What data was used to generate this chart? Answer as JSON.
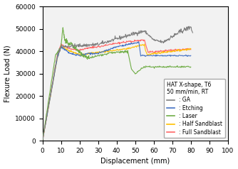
{
  "title": "",
  "xlabel": "Displacement (mm)",
  "ylabel": "Flexure Load (N)",
  "xlim": [
    0,
    100
  ],
  "ylim": [
    0,
    60000
  ],
  "xticks": [
    0,
    10,
    20,
    30,
    40,
    50,
    60,
    70,
    80,
    90,
    100
  ],
  "yticks": [
    0,
    10000,
    20000,
    30000,
    40000,
    50000,
    60000
  ],
  "legend_text": [
    "HAT X-shape, T6\n50 mm/min, RT",
    ": GA",
    ": Etching",
    ": Laser",
    ": Half Sandblast",
    ": Full Sandblast"
  ],
  "colors": {
    "GA": "#808080",
    "Etching": "#4472C4",
    "Laser": "#70AD47",
    "Half Sandblast": "#FFC000",
    "Full Sandblast": "#FF6666"
  },
  "background_color": "#f2f2f2"
}
